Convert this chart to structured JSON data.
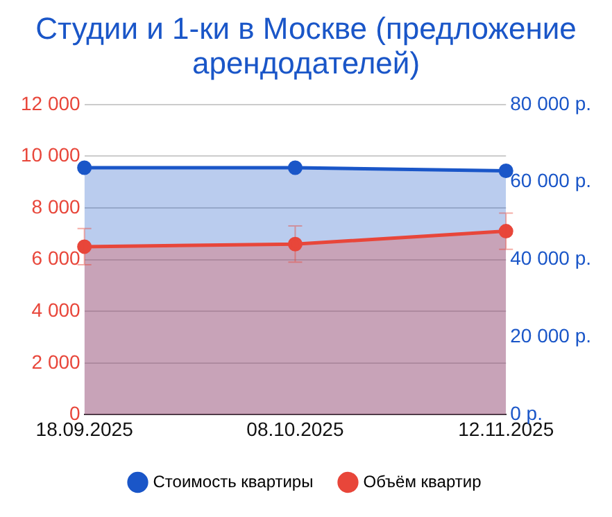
{
  "chart_data": {
    "type": "area",
    "title": "Студии и 1-ки в Москве (предложение арендодателей)",
    "categories": [
      "18.09.2025",
      "08.10.2025",
      "12.11.2025"
    ],
    "series": [
      {
        "name": "Стоимость квартиры",
        "color": "#1a56c8",
        "axis": "y2",
        "values": [
          63700,
          63700,
          62900
        ]
      },
      {
        "name": "Объём квартир",
        "color": "#e8463a",
        "values": [
          6500,
          6600,
          7100
        ],
        "errors": [
          700,
          700,
          700
        ]
      }
    ],
    "ylim": [
      0,
      12000
    ],
    "yticks": [
      {
        "value": 0,
        "label": "0"
      },
      {
        "value": 2000,
        "label": "2 000"
      },
      {
        "value": 4000,
        "label": "4 000"
      },
      {
        "value": 6000,
        "label": "6 000"
      },
      {
        "value": 8000,
        "label": "8 000"
      },
      {
        "value": 10000,
        "label": "10 000"
      },
      {
        "value": 12000,
        "label": "12 000"
      }
    ],
    "y2lim": [
      0,
      80000
    ],
    "y2ticks": [
      {
        "value": 0,
        "label": "0 р."
      },
      {
        "value": 20000,
        "label": "20 000 р."
      },
      {
        "value": 40000,
        "label": "40 000 р."
      },
      {
        "value": 60000,
        "label": "60 000 р."
      },
      {
        "value": 80000,
        "label": "80 000 р."
      }
    ],
    "grid": "y",
    "legend": "bottom",
    "marker": "circle"
  }
}
